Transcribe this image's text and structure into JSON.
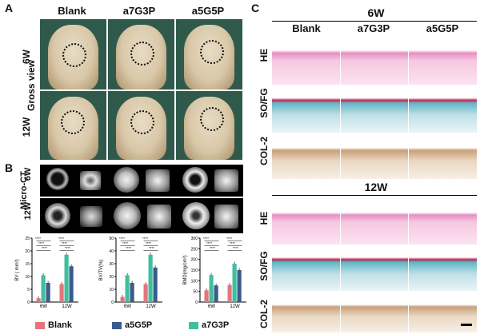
{
  "panel_a": {
    "letter": "A",
    "columns": [
      "Blank",
      "a7G3P",
      "a5G5P"
    ],
    "rows": [
      "6W",
      "12W"
    ],
    "side_label": "Gross view"
  },
  "panel_b": {
    "letter": "B",
    "side_label": "Micro-CT",
    "rows": [
      "6W",
      "12W"
    ]
  },
  "panel_c": {
    "letter": "C",
    "sections": [
      {
        "title": "6W",
        "columns": [
          "Blank",
          "a7G3P",
          "a5G5P"
        ],
        "rows": [
          "HE",
          "SO/FG",
          "COL-2"
        ]
      },
      {
        "title": "12W",
        "rows": [
          "HE",
          "SO/FG",
          "COL-2"
        ]
      }
    ]
  },
  "legend": {
    "items": [
      {
        "label": "Blank",
        "color": "#e8737b"
      },
      {
        "label": "a5G5P",
        "color": "#3b5b8c"
      },
      {
        "label": "a7G3P",
        "color": "#3fbf9e"
      }
    ]
  },
  "chart_data": [
    {
      "type": "bar",
      "categories": [
        "6W",
        "12W"
      ],
      "ylabel": "BV ( mm³)",
      "ylim": [
        0,
        25
      ],
      "yticks": [
        "0",
        "5",
        "10",
        "15",
        "20",
        "25"
      ],
      "series": [
        {
          "name": "Blank",
          "values": [
            1.5,
            7.0
          ]
        },
        {
          "name": "a7G3P",
          "values": [
            10.5,
            18.5
          ]
        },
        {
          "name": "a5G5P",
          "values": [
            7.5,
            14.0
          ]
        }
      ],
      "annotations": [
        "****",
        "****",
        "****",
        "****",
        "****",
        "****"
      ]
    },
    {
      "type": "bar",
      "categories": [
        "6W",
        "12W"
      ],
      "ylabel": "BV/TV(%)",
      "ylim": [
        0,
        50
      ],
      "yticks": [
        "0",
        "10",
        "20",
        "30",
        "40",
        "50"
      ],
      "series": [
        {
          "name": "Blank",
          "values": [
            4,
            14
          ]
        },
        {
          "name": "a7G3P",
          "values": [
            21,
            37
          ]
        },
        {
          "name": "a5G5P",
          "values": [
            15,
            27
          ]
        }
      ],
      "annotations": [
        "****",
        "****",
        "****",
        "****",
        "****",
        "****"
      ]
    },
    {
      "type": "bar",
      "categories": [
        "6W",
        "12W"
      ],
      "ylabel": "BMD(mg/cm³)",
      "ylim": [
        0,
        300
      ],
      "yticks": [
        "0",
        "50",
        "100",
        "150",
        "200",
        "250",
        "300"
      ],
      "series": [
        {
          "name": "Blank",
          "values": [
            55,
            80
          ]
        },
        {
          "name": "a7G3P",
          "values": [
            127,
            180
          ]
        },
        {
          "name": "a5G5P",
          "values": [
            78,
            150
          ]
        }
      ],
      "annotations": [
        "****",
        "****",
        "****",
        "****",
        "****",
        "****"
      ]
    }
  ]
}
